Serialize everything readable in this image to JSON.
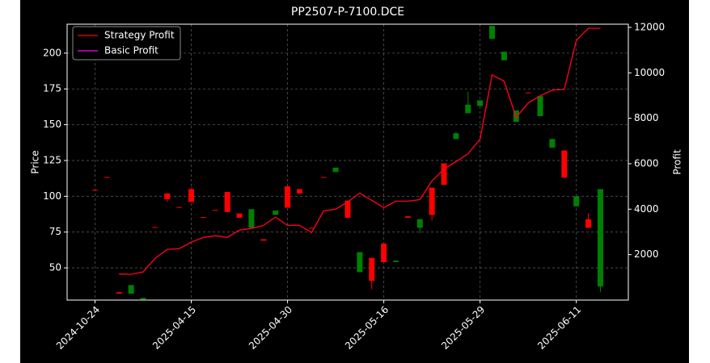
{
  "chart_data": {
    "type": "candlestick",
    "title": "PP2507-P-7100.DCE",
    "y_label": "Price",
    "y2_label": "Profit",
    "categories": [
      "2024-10-24",
      null,
      null,
      null,
      null,
      null,
      null,
      null,
      "2025-04-15",
      null,
      null,
      null,
      null,
      null,
      null,
      null,
      "2025-04-30",
      null,
      null,
      null,
      null,
      null,
      null,
      null,
      "2025-05-16",
      null,
      null,
      null,
      null,
      null,
      null,
      null,
      "2025-05-29",
      null,
      null,
      null,
      null,
      null,
      null,
      null,
      "2025-06-11",
      null,
      null
    ],
    "open": [
      104,
      113,
      32,
      38,
      29,
      78,
      98,
      92,
      96,
      85,
      90,
      89,
      85,
      91,
      69,
      90,
      92,
      102,
      77.5,
      113,
      120,
      85,
      61,
      41,
      54,
      55,
      85,
      84,
      87,
      108,
      144,
      164,
      167,
      219,
      201,
      160,
      172,
      170,
      140,
      113,
      100,
      78,
      105
    ],
    "high": [
      104.5,
      113.5,
      33,
      38,
      29,
      78.5,
      102,
      92.5,
      106,
      85.5,
      90.5,
      103,
      88,
      91,
      70,
      90,
      107,
      105,
      78,
      113.5,
      120,
      97,
      61,
      57,
      67,
      55,
      86,
      84,
      106,
      123,
      145,
      173,
      167,
      219,
      201,
      160,
      172.5,
      170,
      140,
      132,
      100,
      88,
      105
    ],
    "low": [
      104,
      113,
      32,
      32,
      27.5,
      78,
      96,
      92,
      96,
      85,
      90,
      89,
      85,
      78,
      69,
      87,
      92,
      102,
      77.5,
      113,
      117,
      85,
      47,
      35,
      54,
      54,
      85,
      74,
      83,
      108,
      140,
      158,
      163,
      210,
      195,
      152,
      172,
      156,
      134,
      113,
      93,
      78,
      33
    ],
    "close": [
      104.5,
      113.5,
      33,
      32,
      28,
      78.5,
      102,
      92.5,
      105,
      85.5,
      90.5,
      103,
      88,
      78,
      70,
      87,
      107,
      105,
      78,
      113.5,
      117,
      97,
      47,
      57,
      67,
      54,
      86,
      78,
      106,
      123,
      140,
      158,
      163,
      210,
      195,
      152,
      172.5,
      156,
      134,
      132,
      93,
      84,
      37
    ],
    "up_color": "#ff0000",
    "down_color": "#008000",
    "series": [
      {
        "name": "Basic Profit",
        "color": "#ff00ff",
        "axis": "y2",
        "values": [
          0,
          null,
          1150,
          1133,
          1240,
          1840,
          2230,
          2265,
          2550,
          2760,
          2830,
          2760,
          3080,
          3150,
          3290,
          3650,
          3290,
          3290,
          2970,
          3930,
          4000,
          4320,
          4710,
          4390,
          4070,
          4350,
          4350,
          4420,
          5240,
          5770,
          6090,
          6440,
          7080,
          9910,
          9630,
          8040,
          8670,
          8990,
          9240,
          9270,
          11430,
          11960,
          11960
        ]
      },
      {
        "name": "Strategy Profit",
        "color": "#ff0000",
        "axis": "y2",
        "values": [
          0,
          null,
          1150,
          1133,
          1240,
          1840,
          2230,
          2265,
          2550,
          2760,
          2830,
          2760,
          3080,
          3150,
          3290,
          3650,
          3290,
          3290,
          2970,
          3930,
          4000,
          4320,
          4710,
          4390,
          4070,
          4350,
          4350,
          4420,
          5240,
          5770,
          6090,
          6440,
          7080,
          9910,
          9630,
          8040,
          8670,
          8990,
          9240,
          9270,
          11430,
          11960,
          11960
        ]
      }
    ],
    "ylim": [
      27.5,
      220.2
    ],
    "yticks": [
      50,
      75,
      100,
      125,
      150,
      175,
      200
    ],
    "y2lim": [
      0,
      12140
    ],
    "y2ticks": [
      2000,
      4000,
      6000,
      8000,
      10000,
      12000
    ],
    "grid": true,
    "legend": "upper left"
  }
}
